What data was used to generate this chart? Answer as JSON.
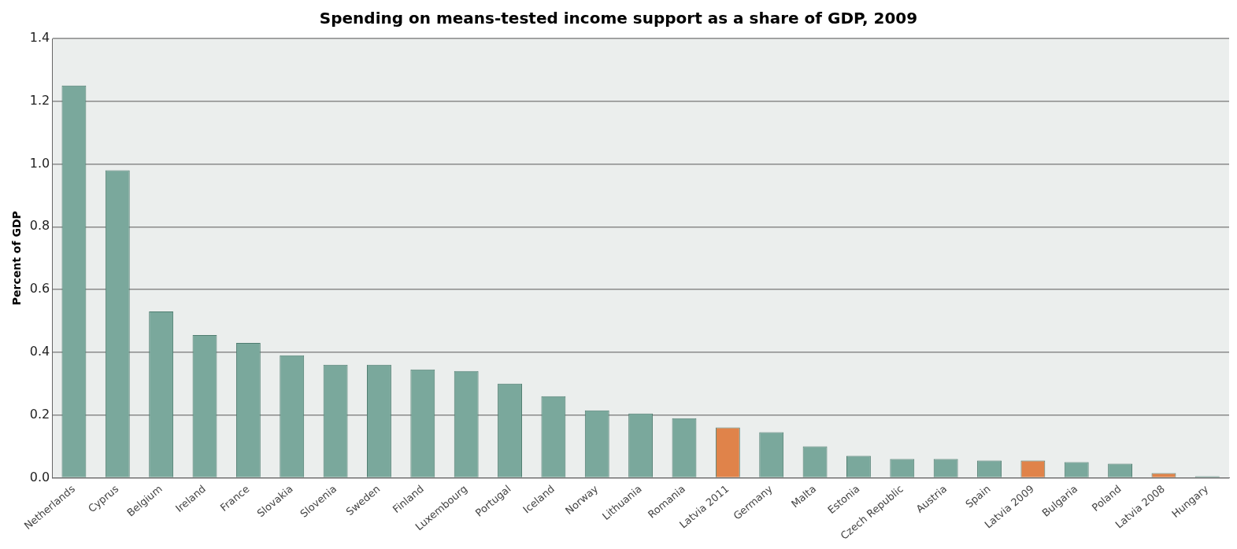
{
  "chart_data": {
    "type": "bar",
    "title": "Spending on means-tested income support as a share of GDP, 2009",
    "ylabel": "Percent of GDP",
    "categories": [
      "Netherlands",
      "Cyprus",
      "Belgium",
      "Ireland",
      "France",
      "Slovakia",
      "Slovenia",
      "Sweden",
      "Finland",
      "Luxembourg",
      "Portugal",
      "Iceland",
      "Norway",
      "Lithuania",
      "Romania",
      "Latvia 2011",
      "Germany",
      "Malta",
      "Estonia",
      "Czech Republic",
      "Austria",
      "Spain",
      "Latvia 2009",
      "Bulgaria",
      "Poland",
      "Latvia 2008",
      "Hungary"
    ],
    "values": [
      1.25,
      0.98,
      0.53,
      0.455,
      0.43,
      0.39,
      0.36,
      0.36,
      0.345,
      0.34,
      0.3,
      0.26,
      0.215,
      0.205,
      0.19,
      0.16,
      0.145,
      0.1,
      0.07,
      0.06,
      0.06,
      0.055,
      0.055,
      0.05,
      0.045,
      0.015,
      0.005
    ],
    "colors": [
      "#7aa89c",
      "#7aa89c",
      "#7aa89c",
      "#7aa89c",
      "#7aa89c",
      "#7aa89c",
      "#7aa89c",
      "#7aa89c",
      "#7aa89c",
      "#7aa89c",
      "#7aa89c",
      "#7aa89c",
      "#7aa89c",
      "#7aa89c",
      "#7aa89c",
      "#e0834a",
      "#7aa89c",
      "#7aa89c",
      "#7aa89c",
      "#7aa89c",
      "#7aa89c",
      "#7aa89c",
      "#e0834a",
      "#7aa89c",
      "#7aa89c",
      "#e0834a",
      "#7aa89c"
    ],
    "ylim": [
      0,
      1.4
    ],
    "yticks": [
      {
        "value": 0,
        "label": "0.0"
      },
      0.2,
      0.4,
      0.6,
      0.8,
      {
        "value": 1,
        "label": "1.0"
      },
      1.2,
      1.4
    ],
    "grid": "y",
    "legend": false
  }
}
